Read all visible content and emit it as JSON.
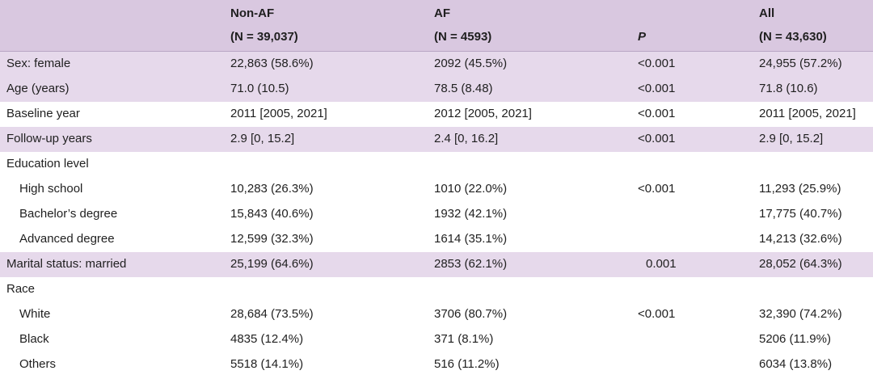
{
  "header": {
    "col1": {
      "name": "Non-AF",
      "n_label": "(N = 39,037)"
    },
    "col2": {
      "name": "AF",
      "n_label": "(N = 4593)"
    },
    "col3": {
      "name": "",
      "n_label": "P"
    },
    "col4": {
      "name": "All",
      "n_label": "(N = 43,630)"
    }
  },
  "rows": [
    {
      "label": "Sex: female",
      "non_af": "22,863 (58.6%)",
      "af": "2092 (45.5%)",
      "p": "<0.001",
      "all": "24,955 (57.2%)"
    },
    {
      "label": "Age (years)",
      "non_af": "71.0 (10.5)",
      "af": "78.5 (8.48)",
      "p": "<0.001",
      "all": "71.8 (10.6)"
    },
    {
      "label": "Baseline year",
      "non_af": "2011 [2005, 2021]",
      "af": "2012 [2005, 2021]",
      "p": "<0.001",
      "all": "2011 [2005, 2021]"
    },
    {
      "label": "Follow-up years",
      "non_af": "2.9 [0, 15.2]",
      "af": "2.4 [0, 16.2]",
      "p": "<0.001",
      "all": "2.9 [0, 15.2]"
    },
    {
      "label": "Education level",
      "non_af": "",
      "af": "",
      "p": "",
      "all": ""
    },
    {
      "label": "High school",
      "non_af": "10,283 (26.3%)",
      "af": "1010 (22.0%)",
      "p": "<0.001",
      "all": "11,293 (25.9%)"
    },
    {
      "label": "Bachelor’s degree",
      "non_af": "15,843 (40.6%)",
      "af": "1932 (42.1%)",
      "p": "",
      "all": "17,775 (40.7%)"
    },
    {
      "label": "Advanced degree",
      "non_af": "12,599 (32.3%)",
      "af": "1614 (35.1%)",
      "p": "",
      "all": "14,213 (32.6%)"
    },
    {
      "label": "Marital status: married",
      "non_af": "25,199 (64.6%)",
      "af": "2853 (62.1%)",
      "p": "0.001",
      "all": "28,052 (64.3%)"
    },
    {
      "label": "Race",
      "non_af": "",
      "af": "",
      "p": "",
      "all": ""
    },
    {
      "label": "White",
      "non_af": "28,684 (73.5%)",
      "af": "3706 (80.7%)",
      "p": "<0.001",
      "all": "32,390 (74.2%)"
    },
    {
      "label": "Black",
      "non_af": "4835 (12.4%)",
      "af": "371 (8.1%)",
      "p": "",
      "all": "5206 (11.9%)"
    },
    {
      "label": "Others",
      "non_af": "5518 (14.1%)",
      "af": "516 (11.2%)",
      "p": "",
      "all": "6034 (13.8%)"
    }
  ]
}
